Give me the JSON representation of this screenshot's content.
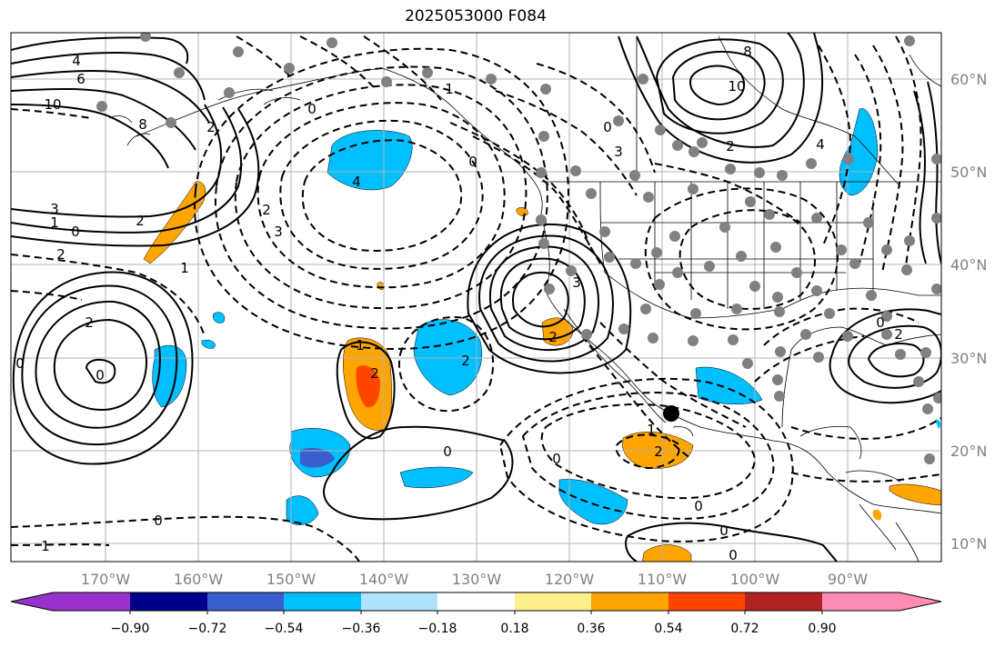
{
  "title": "2025053000 F084",
  "map": {
    "lat_labels": [
      "60°N",
      "50°N",
      "40°N",
      "30°N",
      "20°N",
      "10°N"
    ],
    "lon_labels": [
      "170°W",
      "160°W",
      "150°W",
      "140°W",
      "130°W",
      "120°W",
      "110°W",
      "100°W",
      "90°W"
    ],
    "grid": true,
    "contour_labels": [
      "4",
      "6",
      "10",
      "8",
      "2",
      "3",
      "1",
      "0",
      "0",
      "2",
      "4",
      "3",
      "2",
      "2",
      "1",
      "0",
      "8",
      "10",
      "2",
      "3",
      "4",
      "2",
      "0",
      "1",
      "3",
      "2",
      "2",
      "0",
      "2",
      "0",
      "1",
      "2",
      "0",
      "0",
      "0",
      "1",
      "0",
      "2",
      "0",
      "1",
      "0",
      "0"
    ]
  },
  "colorbar": {
    "ticks": [
      "−0.90",
      "−0.72",
      "−0.54",
      "−0.36",
      "−0.18",
      "0.18",
      "0.36",
      "0.54",
      "0.72",
      "0.90"
    ],
    "colors": [
      "#9932cc",
      "#00008b",
      "#3a5fcd",
      "#00bfff",
      "#b0e2ff",
      "#ffffff",
      "#fff08c",
      "#ffa500",
      "#ff4500",
      "#b22222",
      "#ff8cb4"
    ]
  }
}
